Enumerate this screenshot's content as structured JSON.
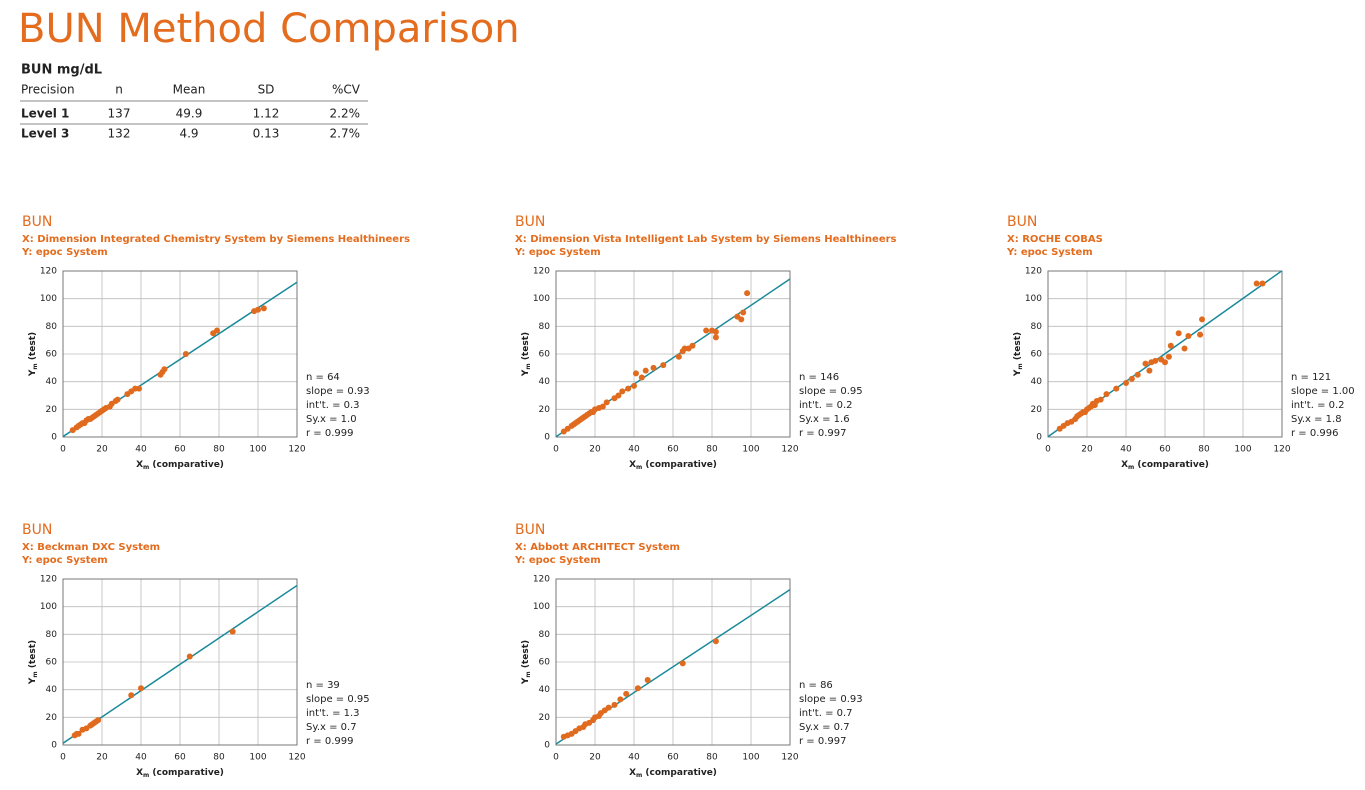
{
  "header": {
    "title": "BUN Method Comparison"
  },
  "table": {
    "caption": "BUN mg/dL",
    "columns": [
      "Precision",
      "n",
      "Mean",
      "SD",
      "%CV"
    ],
    "rows": [
      [
        "Level 1",
        137,
        49.9,
        1.12,
        "2.2%"
      ],
      [
        "Level 3",
        132,
        4.9,
        0.13,
        "2.7%"
      ]
    ]
  },
  "chart_data": [
    {
      "type": "scatter",
      "title": "BUN",
      "subtitle": [
        "X: Dimension Integrated Chemistry System by Siemens Healthineers",
        "Y: epoc System"
      ],
      "xlabel": [
        "X",
        "m",
        " (comparative)"
      ],
      "ylabel": [
        "Y",
        "m",
        " (test)"
      ],
      "xlim": [
        0,
        120
      ],
      "ylim": [
        0,
        120
      ],
      "xticks": [
        0,
        20,
        40,
        60,
        80,
        100,
        120
      ],
      "yticks": [
        0,
        20,
        40,
        60,
        80,
        100,
        120
      ],
      "grid": true,
      "color": "#e06a1e",
      "line_color": "#1a8a9a",
      "fit": {
        "slope": 0.93,
        "intercept": 0.3
      },
      "stats": [
        "n = 64",
        "slope = 0.93",
        "int't. = 0.3",
        "Sy.x = 1.0",
        "r = 0.999"
      ],
      "x": [
        5,
        7,
        8,
        9,
        10,
        11,
        12,
        13,
        14,
        15,
        16,
        17,
        18,
        19,
        20,
        21,
        22,
        24,
        25,
        27,
        28,
        33,
        35,
        37,
        39,
        50,
        51,
        52,
        63,
        77,
        79,
        98,
        100,
        103
      ],
      "y": [
        5,
        7,
        8,
        9,
        10,
        10,
        12,
        13,
        13,
        14,
        15,
        16,
        17,
        18,
        19,
        20,
        21,
        22,
        24,
        26,
        27,
        31,
        33,
        35,
        35,
        45,
        47,
        49,
        60,
        75,
        77,
        91,
        92,
        93
      ]
    },
    {
      "type": "scatter",
      "title": "BUN",
      "subtitle": [
        "X: Dimension Vista Intelligent Lab System by Siemens Healthineers",
        "Y: epoc System"
      ],
      "xlabel": [
        "X",
        "m",
        " (comparative)"
      ],
      "ylabel": [
        "Y",
        "m",
        " (test)"
      ],
      "xlim": [
        0,
        120
      ],
      "ylim": [
        0,
        120
      ],
      "xticks": [
        0,
        20,
        40,
        60,
        80,
        100,
        120
      ],
      "yticks": [
        0,
        20,
        40,
        60,
        80,
        100,
        120
      ],
      "grid": true,
      "color": "#e06a1e",
      "line_color": "#1a8a9a",
      "fit": {
        "slope": 0.95,
        "intercept": 0.2
      },
      "stats": [
        "n = 146",
        "slope = 0.95",
        "int't. = 0.2",
        "Sy.x = 1.6",
        "r = 0.997"
      ],
      "x": [
        4,
        6,
        8,
        9,
        10,
        11,
        12,
        13,
        14,
        15,
        16,
        17,
        18,
        19,
        20,
        22,
        24,
        26,
        30,
        32,
        34,
        37,
        40,
        41,
        44,
        46,
        50,
        55,
        63,
        65,
        66,
        68,
        70,
        77,
        80,
        82,
        82,
        93,
        95,
        96,
        98
      ],
      "y": [
        4,
        6,
        8,
        9,
        10,
        11,
        12,
        13,
        14,
        15,
        16,
        17,
        18,
        18,
        20,
        21,
        22,
        25,
        28,
        30,
        33,
        35,
        37,
        46,
        43,
        48,
        50,
        52,
        58,
        62,
        64,
        64,
        66,
        77,
        77,
        72,
        76,
        87,
        85,
        90,
        104
      ]
    },
    {
      "type": "scatter",
      "title": "BUN",
      "subtitle": [
        "X: ROCHE COBAS",
        "Y: epoc System"
      ],
      "xlabel": [
        "X",
        "m",
        " (comparative)"
      ],
      "ylabel": [
        "Y",
        "m",
        " (test)"
      ],
      "xlim": [
        0,
        120
      ],
      "ylim": [
        0,
        120
      ],
      "xticks": [
        0,
        20,
        40,
        60,
        80,
        100,
        120
      ],
      "yticks": [
        0,
        20,
        40,
        60,
        80,
        100,
        120
      ],
      "grid": true,
      "color": "#e06a1e",
      "line_color": "#1a8a9a",
      "fit": {
        "slope": 1.0,
        "intercept": 0.2
      },
      "stats": [
        "n = 121",
        "slope = 1.00",
        "int't. = 0.2",
        "Sy.x = 1.8",
        "r = 0.996"
      ],
      "x": [
        6,
        8,
        10,
        12,
        14,
        15,
        16,
        17,
        18,
        19,
        20,
        21,
        22,
        23,
        24,
        25,
        27,
        30,
        35,
        40,
        43,
        46,
        50,
        52,
        53,
        55,
        58,
        60,
        62,
        63,
        67,
        70,
        72,
        78,
        79,
        107,
        110
      ],
      "y": [
        6,
        8,
        10,
        11,
        13,
        15,
        16,
        17,
        18,
        18,
        20,
        21,
        22,
        24,
        23,
        26,
        27,
        31,
        35,
        39,
        42,
        45,
        53,
        48,
        54,
        55,
        56,
        54,
        58,
        66,
        75,
        64,
        73,
        74,
        85,
        111,
        111
      ]
    },
    {
      "type": "scatter",
      "title": "BUN",
      "subtitle": [
        "X: Beckman DXC System",
        "Y: epoc System"
      ],
      "xlabel": [
        "X",
        "m",
        " (comparative)"
      ],
      "ylabel": [
        "Y",
        "m",
        " (test)"
      ],
      "xlim": [
        0,
        120
      ],
      "ylim": [
        0,
        120
      ],
      "xticks": [
        0,
        20,
        40,
        60,
        80,
        100,
        120
      ],
      "yticks": [
        0,
        20,
        40,
        60,
        80,
        100,
        120
      ],
      "grid": true,
      "color": "#e06a1e",
      "line_color": "#1a8a9a",
      "fit": {
        "slope": 0.95,
        "intercept": 1.3
      },
      "stats": [
        "n = 39",
        "slope = 0.95",
        "int't. = 1.3",
        "Sy.x = 0.7",
        "r = 0.999"
      ],
      "x": [
        6,
        7,
        8,
        10,
        12,
        14,
        15,
        16,
        17,
        18,
        35,
        40,
        65,
        87
      ],
      "y": [
        7,
        8,
        8,
        11,
        12,
        14,
        15,
        16,
        17,
        18,
        36,
        41,
        64,
        82
      ]
    },
    {
      "type": "scatter",
      "title": "BUN",
      "subtitle": [
        "X: Abbott ARCHITECT System",
        "Y: epoc System"
      ],
      "xlabel": [
        "X",
        "m",
        " (comparative)"
      ],
      "ylabel": [
        "Y",
        "m",
        " (test)"
      ],
      "xlim": [
        0,
        120
      ],
      "ylim": [
        0,
        120
      ],
      "xticks": [
        0,
        20,
        40,
        60,
        80,
        100,
        120
      ],
      "yticks": [
        0,
        20,
        40,
        60,
        80,
        100,
        120
      ],
      "grid": true,
      "color": "#e06a1e",
      "line_color": "#1a8a9a",
      "fit": {
        "slope": 0.93,
        "intercept": 0.7
      },
      "stats": [
        "n = 86",
        "slope = 0.93",
        "int't. = 0.7",
        "Sy.x = 0.7",
        "r = 0.997"
      ],
      "x": [
        4,
        6,
        8,
        10,
        12,
        14,
        15,
        17,
        19,
        20,
        22,
        23,
        25,
        27,
        30,
        33,
        36,
        42,
        47,
        65,
        82
      ],
      "y": [
        6,
        7,
        8,
        10,
        12,
        13,
        15,
        16,
        18,
        20,
        21,
        23,
        25,
        27,
        29,
        33,
        37,
        41,
        47,
        59,
        75
      ]
    }
  ]
}
